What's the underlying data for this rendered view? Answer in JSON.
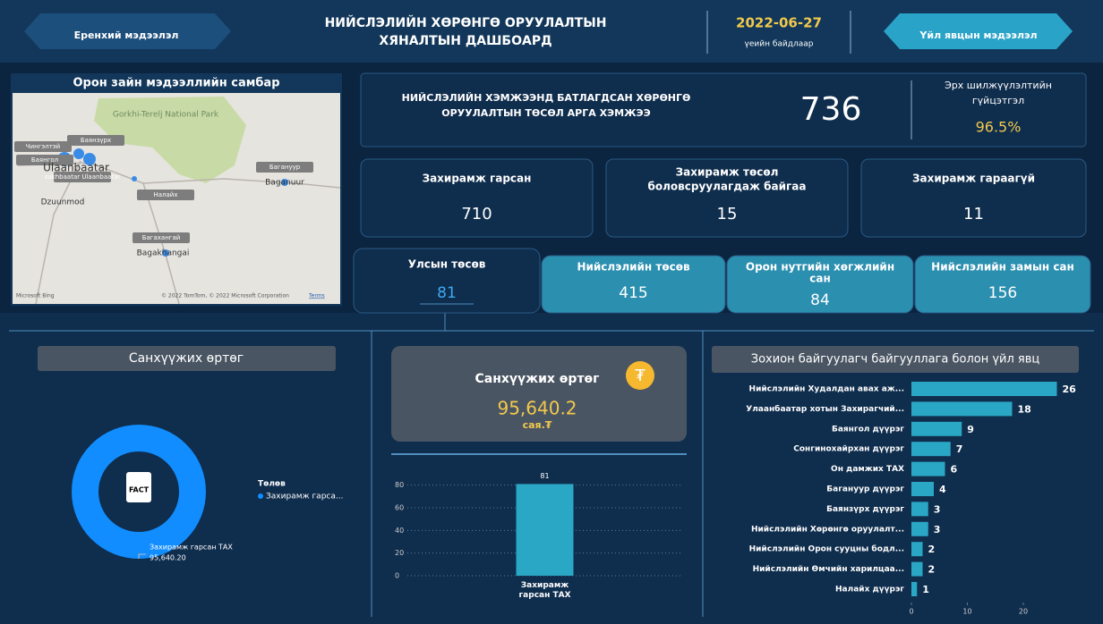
{
  "header": {
    "left_button": "Еренхий мэдээлэл",
    "title": [
      "НИЙСЛЭЛИЙН ХӨРӨНГӨ ОРУУЛАЛТЫН",
      "ХЯНАЛТЫН ДАШБОАРД"
    ],
    "date": "2022-06-27",
    "date_caption": "үеийн байдлаар",
    "right_button": "Үйл явцын мэдээлэл"
  },
  "map": {
    "title": "Орон зайн мэдээллийн самбар",
    "labels": [
      "Gorkhi-Terelj National Park",
      "Чингэлтэй",
      "Баянзүрх",
      "Баянгол",
      "Ulaanbaatar",
      "sukhbaatar Ulaanbaatar",
      "Налайх",
      "Dzuunmod",
      "Багануур",
      "Baganuur",
      "Багахангай",
      "Bagakhangai"
    ],
    "brand": "Microsoft Bing",
    "credit": "© 2022 TomTom, © 2022 Microsoft Corporation",
    "terms": "Terms"
  },
  "summary": {
    "label": [
      "НИЙСЛЭЛИЙН ХЭМЖЭЭНД БАТЛАГДСАН ХӨРӨНГӨ",
      "ОРУУЛАЛТЫН ТӨСӨЛ АРГА ХЭМЖЭЭ"
    ],
    "value": 736,
    "rate_label": [
      "Эрх шилжүүлэлтийн",
      "гүйцэтгэл"
    ],
    "rate": "96.5%"
  },
  "cards": [
    {
      "label": [
        "Захирамж гарсан"
      ],
      "value": 710
    },
    {
      "label": [
        "Захирамж төсөл",
        "боловсруулагдаж байгаа"
      ],
      "value": 15
    },
    {
      "label": [
        "Захирамж гараагүй"
      ],
      "value": 11
    }
  ],
  "tabs": [
    {
      "label": [
        "Улсын төсөв"
      ],
      "value": 81
    },
    {
      "label": [
        "Нийслэлийн төсөв"
      ],
      "value": 415
    },
    {
      "label": [
        "Орон нутгийн хөгжлийн",
        "сан"
      ],
      "value": 84
    },
    {
      "label": [
        "Нийслэлийн замын сан"
      ],
      "value": 156
    }
  ],
  "cost_card": {
    "title": "Санхүүжих өртөг",
    "value": "95,640.2",
    "unit": "сая.₮",
    "icon": "₮"
  },
  "chart_data": [
    {
      "type": "pie",
      "title": "Санхүүжих өртөг",
      "icon": "FACT",
      "legend_title": "Төлөв",
      "legend": [
        "Захирамж гарса..."
      ],
      "categories": [
        "Захирамж гарсан ТАХ"
      ],
      "values": [
        95640.2
      ],
      "value_labels": [
        "95,640.20"
      ],
      "colors": [
        "#118dff"
      ]
    },
    {
      "type": "bar",
      "categories": [
        "Захирамж гарсан ТАХ"
      ],
      "values": [
        81
      ],
      "color": "#2aa7c4",
      "ylim": [
        0,
        90
      ],
      "yticks": [
        0,
        20,
        40,
        60,
        80
      ],
      "grid": true
    },
    {
      "type": "hbar",
      "title": "Зохион байгуулагч байгууллага болон үйл явц",
      "categories": [
        "Нийслэлийн Худалдан авах аж...",
        "Улаанбаатар хотын Захирагчий...",
        "Баянгол дүүрэг",
        "Сонгинохайрхан дүүрэг",
        "Он дамжих ТАХ",
        "Багануур дүүрэг",
        "Баянзүрх дүүрэг",
        "Нийслэлийн Хөрөнгө оруулалт...",
        "Нийслэлийн Орон сууцны бодл...",
        "Нийслэлийн Өмчийн харилцаа...",
        "Налайх дүүрэг"
      ],
      "values": [
        26,
        18,
        9,
        7,
        6,
        4,
        3,
        3,
        2,
        2,
        1
      ],
      "color": "#2aa7c4",
      "xlim": [
        0,
        28
      ],
      "xticks": [
        0,
        10,
        20
      ]
    }
  ]
}
